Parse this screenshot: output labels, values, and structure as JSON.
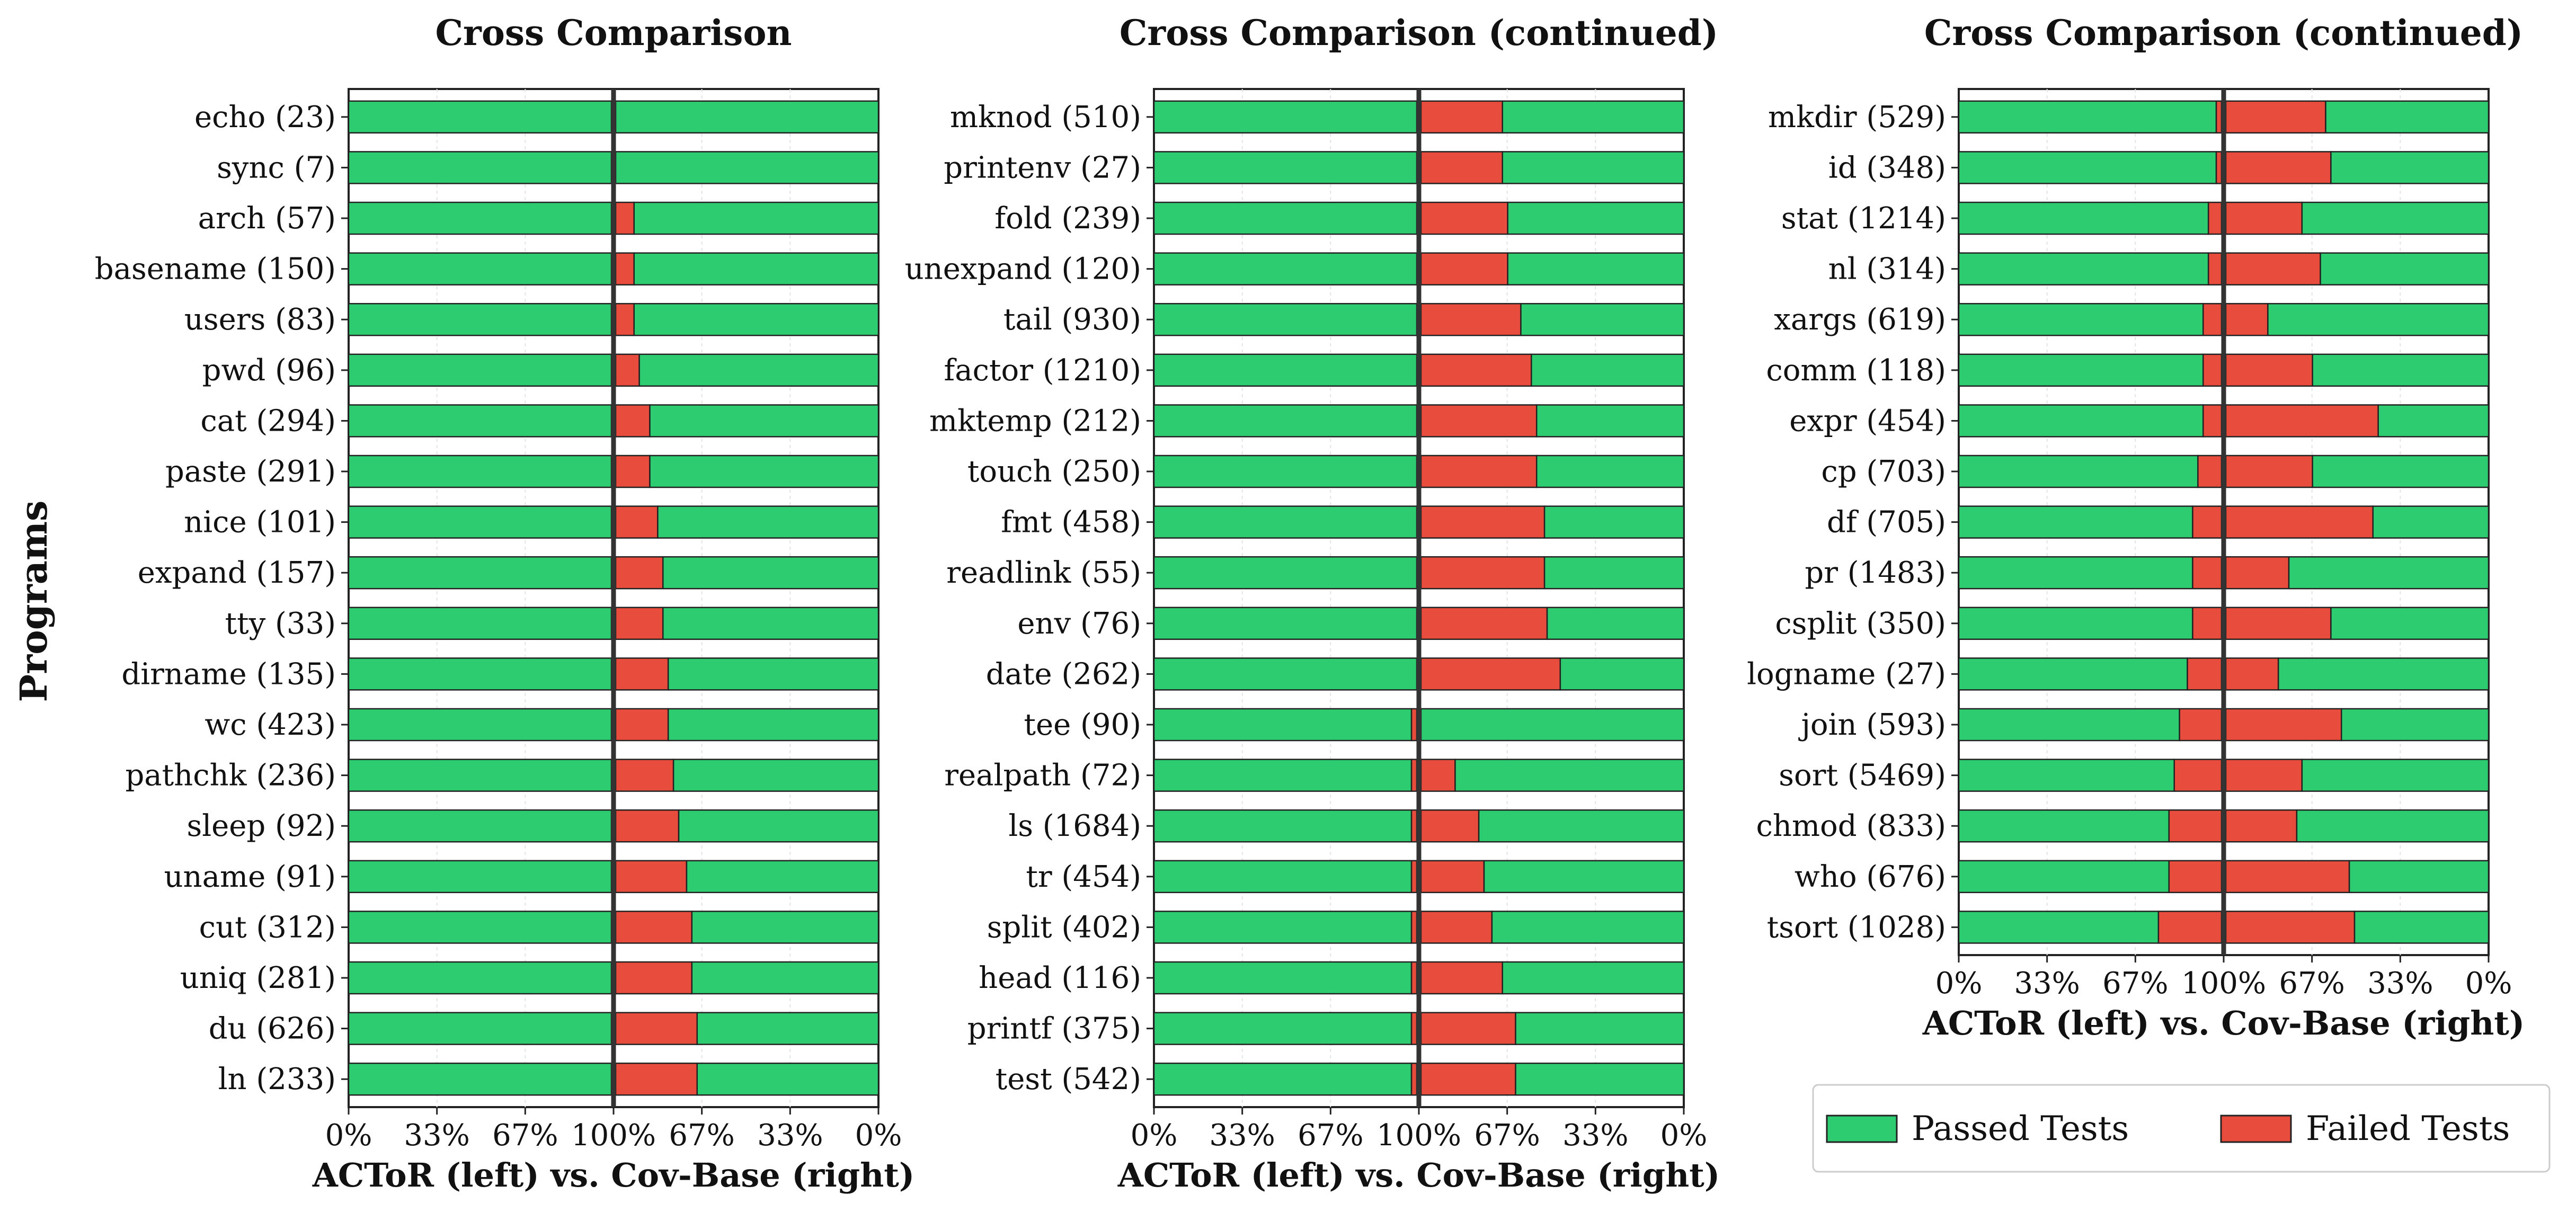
{
  "chart_data": {
    "type": "bar",
    "ylabel": "Programs",
    "legend": {
      "placement": "bottom-right",
      "entries": [
        "Passed Tests",
        "Failed Tests"
      ]
    },
    "colors": {
      "passed": "#2ecc71",
      "failed": "#e74c3c",
      "edge": "#222222",
      "divider": "#333333"
    },
    "xticks": [
      "0%",
      "33%",
      "67%",
      "100%",
      "67%",
      "33%",
      "0%"
    ],
    "panels": [
      {
        "title": "Cross Comparison",
        "xlabel": "ACToR (left) vs. Cov-Base (right)",
        "rows": [
          {
            "label": "echo (23)",
            "actor_failed_pct": 0,
            "covbase_failed_pct": 0
          },
          {
            "label": "sync (7)",
            "actor_failed_pct": 0,
            "covbase_failed_pct": 0
          },
          {
            "label": "arch (57)",
            "actor_failed_pct": 0,
            "covbase_failed_pct": 7
          },
          {
            "label": "basename (150)",
            "actor_failed_pct": 0,
            "covbase_failed_pct": 7
          },
          {
            "label": "users (83)",
            "actor_failed_pct": 0,
            "covbase_failed_pct": 7
          },
          {
            "label": "pwd (96)",
            "actor_failed_pct": 0,
            "covbase_failed_pct": 9
          },
          {
            "label": "cat (294)",
            "actor_failed_pct": 0,
            "covbase_failed_pct": 13
          },
          {
            "label": "paste (291)",
            "actor_failed_pct": 0,
            "covbase_failed_pct": 13
          },
          {
            "label": "nice (101)",
            "actor_failed_pct": 0,
            "covbase_failed_pct": 16
          },
          {
            "label": "expand (157)",
            "actor_failed_pct": 0,
            "covbase_failed_pct": 18
          },
          {
            "label": "tty (33)",
            "actor_failed_pct": 0,
            "covbase_failed_pct": 18
          },
          {
            "label": "dirname (135)",
            "actor_failed_pct": 0,
            "covbase_failed_pct": 20
          },
          {
            "label": "wc (423)",
            "actor_failed_pct": 0,
            "covbase_failed_pct": 20
          },
          {
            "label": "pathchk (236)",
            "actor_failed_pct": 0,
            "covbase_failed_pct": 22
          },
          {
            "label": "sleep (92)",
            "actor_failed_pct": 0,
            "covbase_failed_pct": 24
          },
          {
            "label": "uname (91)",
            "actor_failed_pct": 0,
            "covbase_failed_pct": 27
          },
          {
            "label": "cut (312)",
            "actor_failed_pct": 0,
            "covbase_failed_pct": 29
          },
          {
            "label": "uniq (281)",
            "actor_failed_pct": 0,
            "covbase_failed_pct": 29
          },
          {
            "label": "du (626)",
            "actor_failed_pct": 0,
            "covbase_failed_pct": 31
          },
          {
            "label": "ln (233)",
            "actor_failed_pct": 0,
            "covbase_failed_pct": 31
          }
        ]
      },
      {
        "title": "Cross Comparison (continued)",
        "xlabel": "ACToR (left) vs. Cov-Base (right)",
        "rows": [
          {
            "label": "mknod (510)",
            "actor_failed_pct": 0,
            "covbase_failed_pct": 31
          },
          {
            "label": "printenv (27)",
            "actor_failed_pct": 0,
            "covbase_failed_pct": 31
          },
          {
            "label": "fold (239)",
            "actor_failed_pct": 0,
            "covbase_failed_pct": 33
          },
          {
            "label": "unexpand (120)",
            "actor_failed_pct": 0,
            "covbase_failed_pct": 33
          },
          {
            "label": "tail (930)",
            "actor_failed_pct": 0,
            "covbase_failed_pct": 38
          },
          {
            "label": "factor (1210)",
            "actor_failed_pct": 0,
            "covbase_failed_pct": 42
          },
          {
            "label": "mktemp (212)",
            "actor_failed_pct": 0,
            "covbase_failed_pct": 44
          },
          {
            "label": "touch (250)",
            "actor_failed_pct": 0,
            "covbase_failed_pct": 44
          },
          {
            "label": "fmt (458)",
            "actor_failed_pct": 0,
            "covbase_failed_pct": 47
          },
          {
            "label": "readlink (55)",
            "actor_failed_pct": 0,
            "covbase_failed_pct": 47
          },
          {
            "label": "env (76)",
            "actor_failed_pct": 0,
            "covbase_failed_pct": 48
          },
          {
            "label": "date (262)",
            "actor_failed_pct": 0,
            "covbase_failed_pct": 53
          },
          {
            "label": "tee (90)",
            "actor_failed_pct": 2,
            "covbase_failed_pct": 0
          },
          {
            "label": "realpath (72)",
            "actor_failed_pct": 2,
            "covbase_failed_pct": 13
          },
          {
            "label": "ls (1684)",
            "actor_failed_pct": 2,
            "covbase_failed_pct": 22
          },
          {
            "label": "tr (454)",
            "actor_failed_pct": 2,
            "covbase_failed_pct": 24
          },
          {
            "label": "split (402)",
            "actor_failed_pct": 2,
            "covbase_failed_pct": 27
          },
          {
            "label": "head (116)",
            "actor_failed_pct": 2,
            "covbase_failed_pct": 31
          },
          {
            "label": "printf (375)",
            "actor_failed_pct": 2,
            "covbase_failed_pct": 36
          },
          {
            "label": "test (542)",
            "actor_failed_pct": 2,
            "covbase_failed_pct": 36
          }
        ]
      },
      {
        "title": "Cross Comparison (continued)",
        "xlabel": "ACToR (left) vs. Cov-Base (right)",
        "rows": [
          {
            "label": "mkdir (529)",
            "actor_failed_pct": 2,
            "covbase_failed_pct": 38
          },
          {
            "label": "id (348)",
            "actor_failed_pct": 2,
            "covbase_failed_pct": 40
          },
          {
            "label": "stat (1214)",
            "actor_failed_pct": 5,
            "covbase_failed_pct": 29
          },
          {
            "label": "nl (314)",
            "actor_failed_pct": 5,
            "covbase_failed_pct": 36
          },
          {
            "label": "xargs (619)",
            "actor_failed_pct": 7,
            "covbase_failed_pct": 16
          },
          {
            "label": "comm (118)",
            "actor_failed_pct": 7,
            "covbase_failed_pct": 33
          },
          {
            "label": "expr (454)",
            "actor_failed_pct": 7,
            "covbase_failed_pct": 58
          },
          {
            "label": "cp (703)",
            "actor_failed_pct": 9,
            "covbase_failed_pct": 33
          },
          {
            "label": "df (705)",
            "actor_failed_pct": 11,
            "covbase_failed_pct": 56
          },
          {
            "label": "pr (1483)",
            "actor_failed_pct": 11,
            "covbase_failed_pct": 24
          },
          {
            "label": "csplit (350)",
            "actor_failed_pct": 11,
            "covbase_failed_pct": 40
          },
          {
            "label": "logname (27)",
            "actor_failed_pct": 13,
            "covbase_failed_pct": 20
          },
          {
            "label": "join (593)",
            "actor_failed_pct": 16,
            "covbase_failed_pct": 44
          },
          {
            "label": "sort (5469)",
            "actor_failed_pct": 18,
            "covbase_failed_pct": 29
          },
          {
            "label": "chmod (833)",
            "actor_failed_pct": 20,
            "covbase_failed_pct": 27
          },
          {
            "label": "who (676)",
            "actor_failed_pct": 20,
            "covbase_failed_pct": 47
          },
          {
            "label": "tsort (1028)",
            "actor_failed_pct": 24,
            "covbase_failed_pct": 49
          }
        ]
      }
    ]
  }
}
